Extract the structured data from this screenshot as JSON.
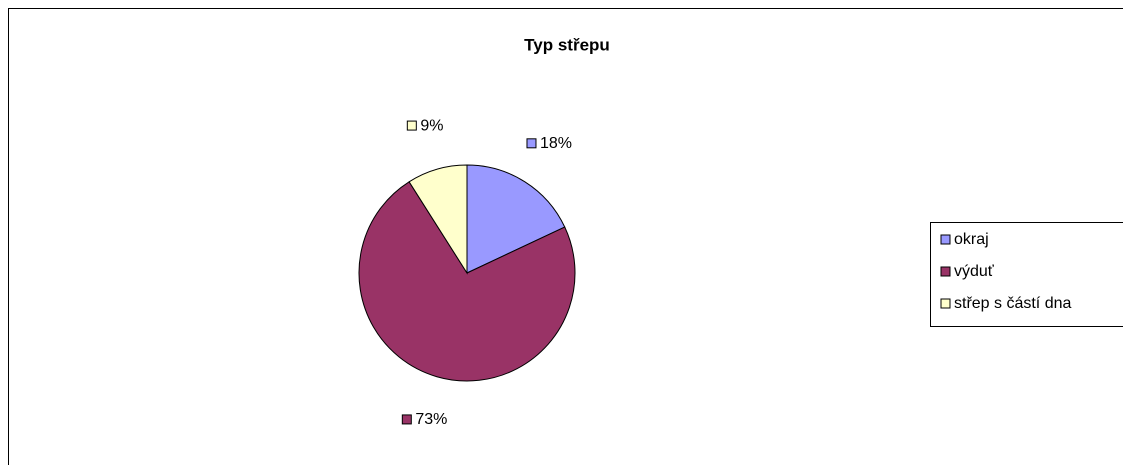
{
  "chart_data": {
    "type": "pie",
    "title": "Typ střepu",
    "categories": [
      "okraj",
      "výduť",
      "střep s částí dna"
    ],
    "values": [
      18,
      73,
      9
    ],
    "value_labels": [
      "18%",
      "73%",
      "9%"
    ],
    "colors": [
      "#9999ff",
      "#993366",
      "#ffffcc"
    ],
    "legend": "right"
  }
}
